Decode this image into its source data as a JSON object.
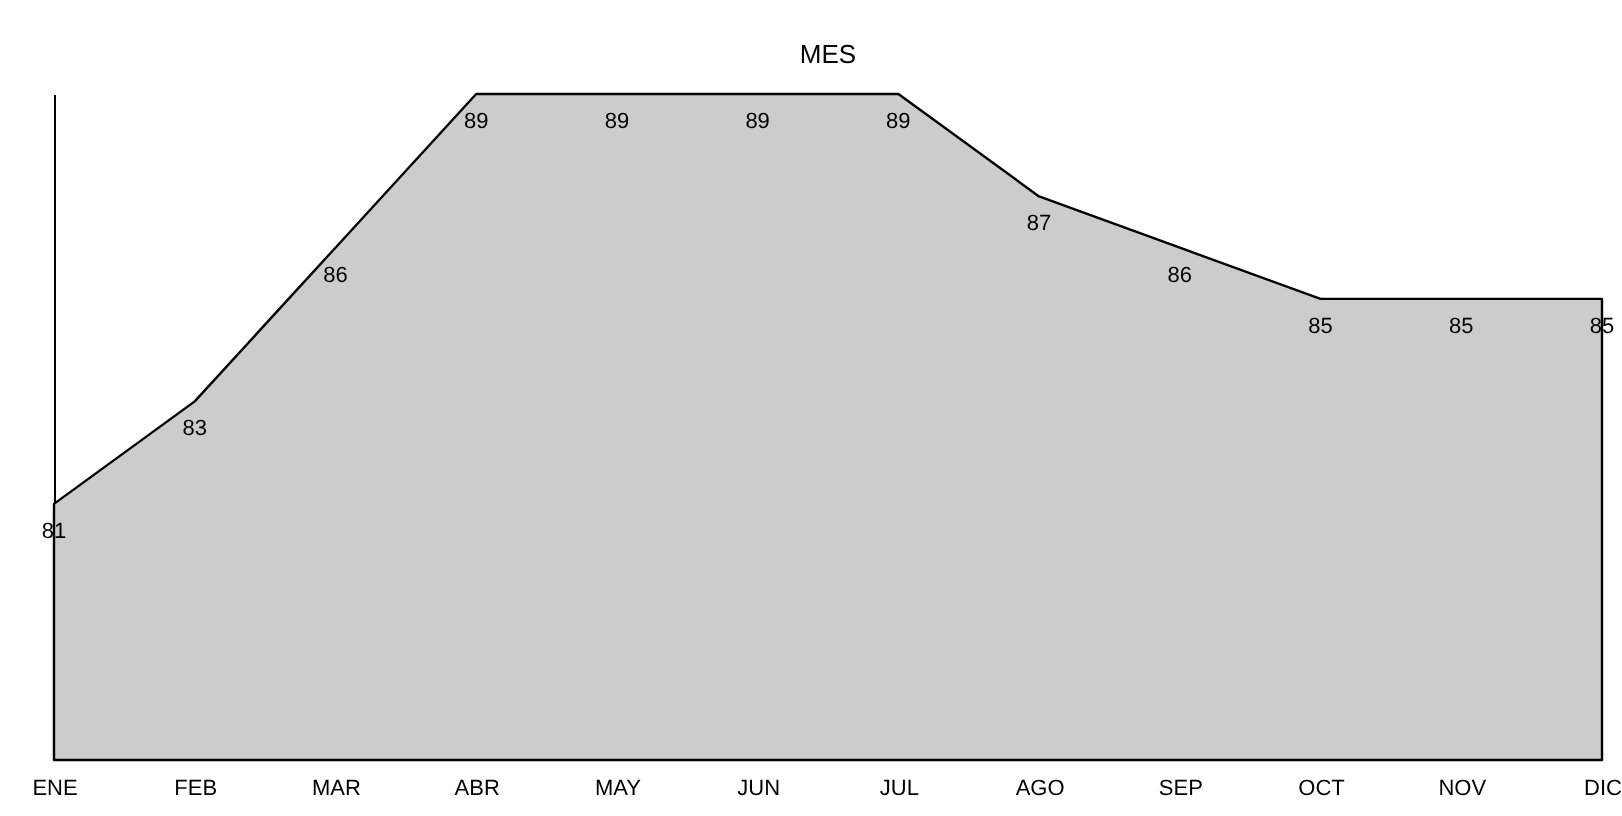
{
  "chart_data": {
    "type": "area",
    "title": "MES",
    "categories": [
      "ENE",
      "FEB",
      "MAR",
      "ABR",
      "MAY",
      "JUN",
      "JUL",
      "AGO",
      "SEP",
      "OCT",
      "NOV",
      "DIC"
    ],
    "series": [
      {
        "color": "#cccccc",
        "values": [
          81,
          83,
          86,
          89,
          89,
          89,
          89,
          87,
          86,
          85,
          85,
          85
        ]
      }
    ],
    "ylim": [
      76,
      89
    ],
    "data_labels": true
  }
}
